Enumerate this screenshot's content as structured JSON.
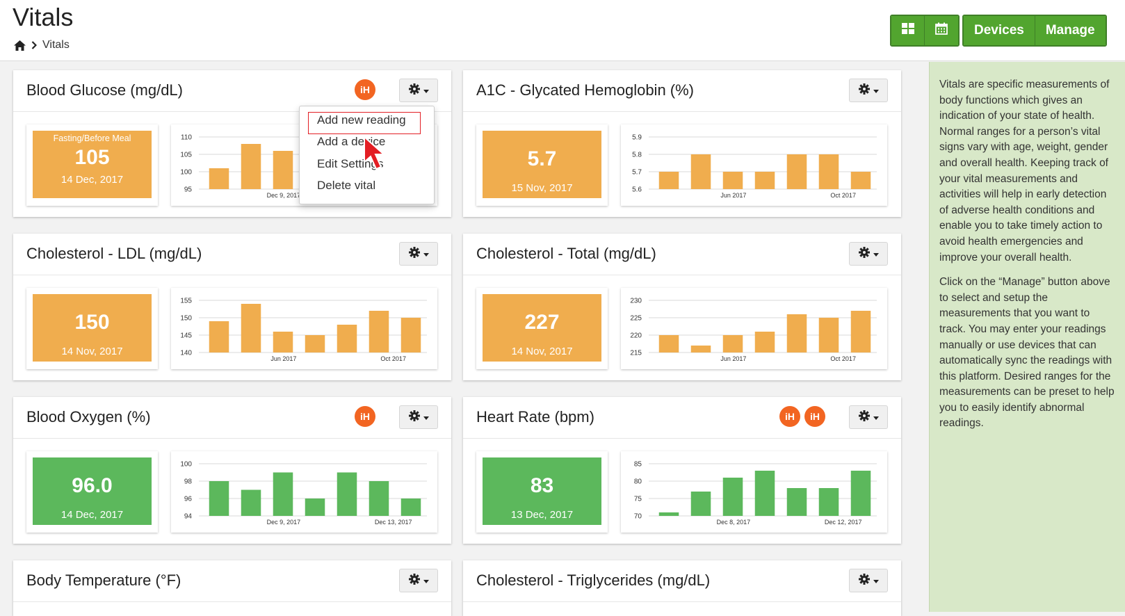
{
  "header": {
    "title": "Vitals",
    "breadcrumb": {
      "home_icon": "home-icon",
      "separator_icon": "chevron-right-icon",
      "current": "Vitals"
    },
    "view_buttons": [
      {
        "icon": "grid-icon"
      },
      {
        "icon": "calendar-icon"
      }
    ],
    "devices_label": "Devices",
    "manage_label": "Manage"
  },
  "info": {
    "paragraph1": "Vitals are specific measurements of body functions which gives an indication of your state of health. Normal ranges for a person’s vital signs vary with age, weight, gender and overall health. Keeping track of your vital measurements and activities will help in early detection of adverse health conditions and enable you to take timely action to avoid health emergencies and improve your overall health.",
    "paragraph2": "Click on the “Manage” button above to select and setup the measurements that you want to track. You may enter your readings manually or use devices that can automatically sync the readings with this platform. Desired ranges for the measurements can be preset to help you to easily identify abnormal readings."
  },
  "badge_label": "iH",
  "dropdown": {
    "items": [
      "Add new reading",
      "Add a device",
      "Edit Settings",
      "Delete vital"
    ]
  },
  "colors": {
    "orange": "#f0ad4e",
    "green": "#5cb85c",
    "header_green": "#52a52f",
    "badge": "#f26522"
  },
  "cards": [
    {
      "title": "Blood Glucose (mg/dL)",
      "value": "105",
      "value_label": "Fasting/Before Meal",
      "date": "14 Dec, 2017",
      "color": "orange",
      "badges": 1,
      "chart_data": {
        "type": "bar",
        "y_ticks": [
          "110",
          "105",
          "100",
          "95"
        ],
        "ylim": [
          95,
          110
        ],
        "x_labels": [
          "Dec 9, 2017"
        ],
        "values": [
          101,
          108,
          106
        ]
      }
    },
    {
      "title": "A1C - Glycated Hemoglobin (%)",
      "value": "5.7",
      "date": "15 Nov, 2017",
      "color": "orange",
      "badges": 0,
      "chart_data": {
        "type": "bar",
        "y_ticks": [
          "5.9",
          "5.8",
          "5.7",
          "5.6"
        ],
        "ylim": [
          5.6,
          5.9
        ],
        "x_labels": [
          "Jun 2017",
          "Oct 2017"
        ],
        "values": [
          5.7,
          5.8,
          5.7,
          5.7,
          5.8,
          5.8,
          5.7
        ]
      }
    },
    {
      "title": "Cholesterol - LDL (mg/dL)",
      "value": "150",
      "date": "14 Nov, 2017",
      "color": "orange",
      "badges": 0,
      "chart_data": {
        "type": "bar",
        "y_ticks": [
          "155",
          "150",
          "145",
          "140"
        ],
        "ylim": [
          140,
          155
        ],
        "x_labels": [
          "Jun 2017",
          "Oct 2017"
        ],
        "values": [
          149,
          154,
          146,
          145,
          148,
          152,
          150
        ]
      }
    },
    {
      "title": "Cholesterol - Total (mg/dL)",
      "value": "227",
      "date": "14 Nov, 2017",
      "color": "orange",
      "badges": 0,
      "chart_data": {
        "type": "bar",
        "y_ticks": [
          "230",
          "225",
          "220",
          "215"
        ],
        "ylim": [
          215,
          230
        ],
        "x_labels": [
          "Jun 2017",
          "Oct 2017"
        ],
        "values": [
          220,
          217,
          220,
          221,
          226,
          225,
          227
        ]
      }
    },
    {
      "title": "Blood Oxygen (%)",
      "value": "96.0",
      "date": "14 Dec, 2017",
      "color": "green",
      "badges": 1,
      "chart_data": {
        "type": "bar",
        "y_ticks": [
          "100",
          "98",
          "96",
          "94"
        ],
        "ylim": [
          94,
          100
        ],
        "x_labels": [
          "Dec 9, 2017",
          "Dec 13, 2017"
        ],
        "values": [
          98,
          97,
          99,
          96,
          99,
          98,
          96
        ]
      }
    },
    {
      "title": "Heart Rate (bpm)",
      "value": "83",
      "date": "13 Dec, 2017",
      "color": "green",
      "badges": 2,
      "chart_data": {
        "type": "bar",
        "y_ticks": [
          "85",
          "80",
          "75",
          "70"
        ],
        "ylim": [
          70,
          85
        ],
        "x_labels": [
          "Dec 8, 2017",
          "Dec 12, 2017"
        ],
        "values": [
          71,
          77,
          81,
          83,
          78,
          78,
          83
        ]
      }
    },
    {
      "title": "Body Temperature (°F)",
      "badges": 0
    },
    {
      "title": "Cholesterol - Triglycerides (mg/dL)",
      "badges": 0
    }
  ]
}
